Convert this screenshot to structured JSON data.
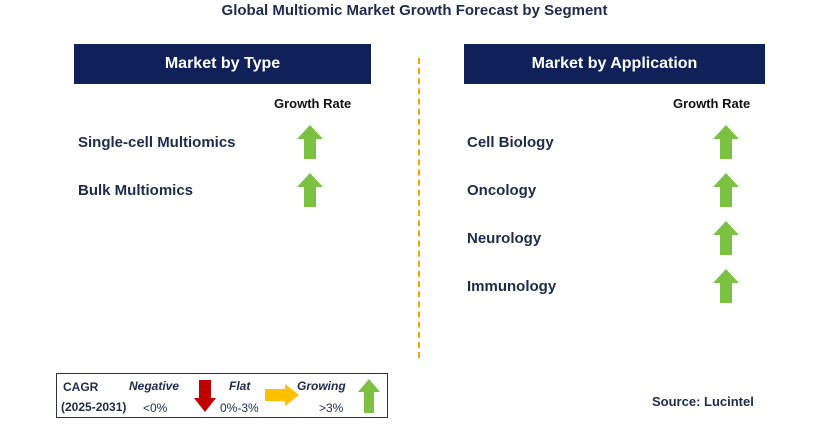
{
  "title": "Global Multiomic Market Growth Forecast by Segment",
  "type_panel": {
    "header": "Market by Type",
    "rate_label": "Growth Rate",
    "items": [
      {
        "label": "Single-cell Multiomics",
        "trend": "growing"
      },
      {
        "label": "Bulk Multiomics",
        "trend": "growing"
      }
    ]
  },
  "application_panel": {
    "header": "Market by Application",
    "rate_label": "Growth Rate",
    "items": [
      {
        "label": "Cell Biology",
        "trend": "growing"
      },
      {
        "label": "Oncology",
        "trend": "growing"
      },
      {
        "label": "Neurology",
        "trend": "growing"
      },
      {
        "label": "Immunology",
        "trend": "growing"
      }
    ]
  },
  "legend": {
    "cagr": "CAGR",
    "period": "(2025-2031)",
    "negative": {
      "label": "Negative",
      "range": "<0%",
      "icon": "red-down-arrow-icon"
    },
    "flat": {
      "label": "Flat",
      "range": "0%-3%",
      "icon": "orange-right-arrow-icon"
    },
    "growing": {
      "label": "Growing",
      "range": ">3%",
      "icon": "green-up-arrow-icon"
    }
  },
  "source": "Source: Lucintel",
  "colors": {
    "header_bg": "#0f2158",
    "text": "#1f2a4d",
    "growing": "#7dc142",
    "flat": "#ffc000",
    "negative": "#c00000",
    "divider": "#f0a500"
  }
}
